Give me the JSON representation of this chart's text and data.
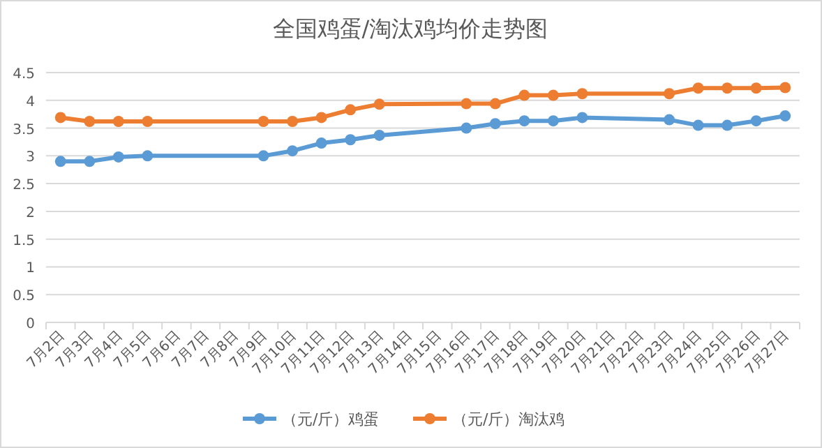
{
  "chart_data": {
    "type": "line",
    "title": "全国鸡蛋/淘汰鸡均价走势图",
    "categories": [
      "7月2日",
      "7月3日",
      "7月4日",
      "7月5日",
      "7月6日",
      "7月7日",
      "7月8日",
      "7月9日",
      "7月10日",
      "7月11日",
      "7月12日",
      "7月13日",
      "7月14日",
      "7月15日",
      "7月16日",
      "7月17日",
      "7月18日",
      "7月19日",
      "7月20日",
      "7月21日",
      "7月22日",
      "7月23日",
      "7月24日",
      "7月25日",
      "7月26日",
      "7月27日"
    ],
    "series": [
      {
        "name": "（元/斤）鸡蛋",
        "color": "#5b9bd5",
        "values": [
          2.9,
          2.9,
          2.98,
          3.0,
          null,
          null,
          null,
          3.0,
          3.09,
          3.23,
          3.29,
          3.37,
          null,
          null,
          3.5,
          3.58,
          3.63,
          3.63,
          3.69,
          null,
          null,
          3.65,
          3.55,
          3.55,
          3.63,
          3.72
        ]
      },
      {
        "name": "（元/斤）淘汰鸡",
        "color": "#ed7d31",
        "values": [
          3.69,
          3.62,
          3.62,
          3.62,
          null,
          null,
          null,
          3.62,
          3.62,
          3.69,
          3.83,
          3.93,
          null,
          null,
          3.94,
          3.94,
          4.09,
          4.09,
          4.12,
          null,
          null,
          4.12,
          4.22,
          4.22,
          4.22,
          4.23
        ]
      }
    ],
    "ylim": [
      0,
      4.5
    ],
    "yticks": [
      0,
      0.5,
      1,
      1.5,
      2,
      2.5,
      3,
      3.5,
      4,
      4.5
    ],
    "grid": "y",
    "legend": "bottom",
    "marker": "circle",
    "line_style": "solid"
  }
}
